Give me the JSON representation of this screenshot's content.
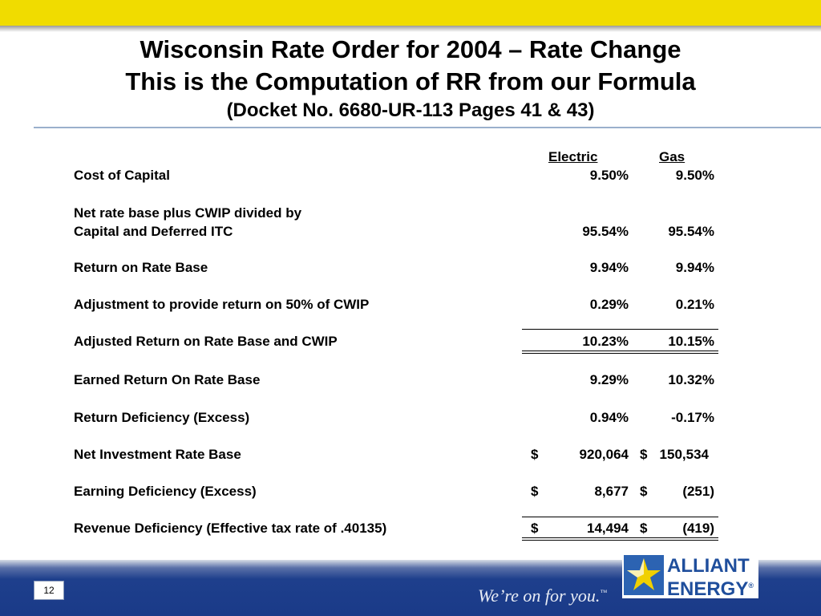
{
  "title": {
    "line1": "Wisconsin Rate Order for 2004 – Rate Change",
    "line2": "This is the Computation of RR from our Formula",
    "line3": "(Docket No. 6680-UR-113 Pages 41 & 43)"
  },
  "table": {
    "headers": {
      "electric": "Electric",
      "gas": "Gas"
    },
    "rows": [
      {
        "label": "Cost of Capital",
        "electric": "9.50%",
        "gas": "9.50%"
      },
      {
        "label": "Net rate base plus CWIP divided by"
      },
      {
        "label": "Capital and Deferred ITC",
        "electric": "95.54%",
        "gas": "95.54%"
      },
      {
        "label": "Return on Rate Base",
        "electric": "9.94%",
        "gas": "9.94%"
      },
      {
        "label": "Adjustment to provide return on 50% of CWIP",
        "electric": "0.29%",
        "gas": "0.21%"
      },
      {
        "label": "Adjusted Return on Rate Base and CWIP",
        "electric": "10.23%",
        "gas": "10.15%"
      },
      {
        "label": "Earned Return On Rate Base",
        "electric": "9.29%",
        "gas": "10.32%"
      },
      {
        "label": "Return Deficiency (Excess)",
        "electric": "0.94%",
        "gas": "-0.17%"
      },
      {
        "label": "Net Investment Rate Base",
        "electric_symbol": "$",
        "electric": "920,064",
        "gas_symbol": "$",
        "gas": "150,534"
      },
      {
        "label": "Earning Deficiency (Excess)",
        "electric_symbol": "$",
        "electric": "8,677",
        "gas_symbol": "$",
        "gas": "(251)"
      },
      {
        "label": "Revenue Deficiency (Effective tax rate of .40135)",
        "electric_symbol": "$",
        "electric": "14,494",
        "gas_symbol": "$",
        "gas": "(419)"
      }
    ]
  },
  "footer": {
    "page_number": "12",
    "tagline": "We’re on for you.",
    "tagline_mark": "™",
    "logo_line1": "ALLIANT",
    "logo_line2": "ENERGY",
    "logo_mark": "®"
  },
  "colors": {
    "top_bar": "#f0dc00",
    "footer_blue": "#1a3a88",
    "logo_blue": "#1f4e9c",
    "logo_yellow": "#f0d000"
  }
}
